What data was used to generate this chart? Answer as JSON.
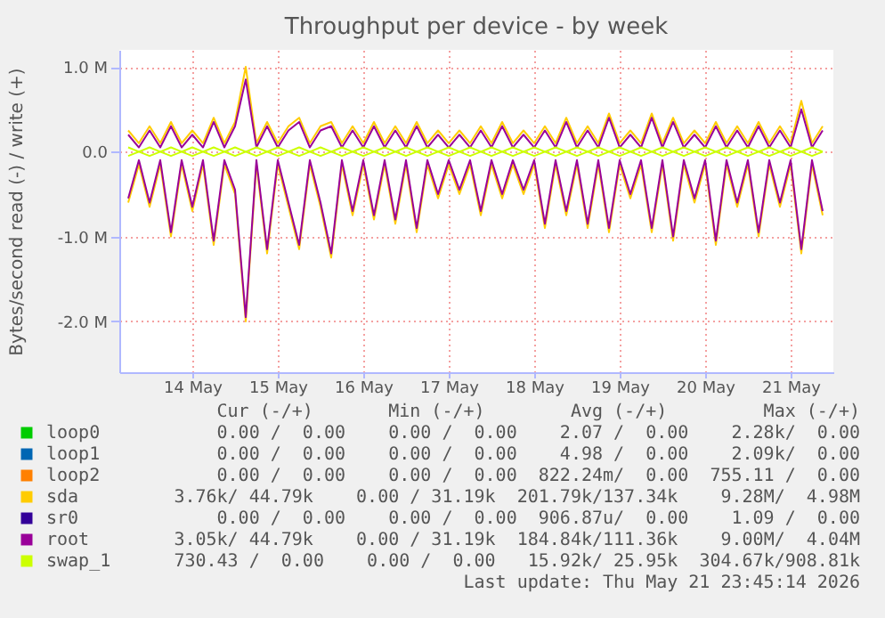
{
  "chart_data": {
    "type": "line",
    "title": "Throughput per device - by week",
    "ylabel": "Bytes/second read (-) / write (+)",
    "x": [
      "2026-05-13T18:00",
      "2026-05-13T21:00",
      "2026-05-14T00:00",
      "2026-05-14T03:00",
      "2026-05-14T06:00",
      "2026-05-14T09:00",
      "2026-05-14T12:00",
      "2026-05-14T15:00",
      "2026-05-14T18:00",
      "2026-05-14T21:00",
      "2026-05-15T00:00",
      "2026-05-15T03:00",
      "2026-05-15T06:00",
      "2026-05-15T09:00",
      "2026-05-15T12:00",
      "2026-05-15T15:00",
      "2026-05-15T18:00",
      "2026-05-15T21:00",
      "2026-05-16T00:00",
      "2026-05-16T03:00",
      "2026-05-16T06:00",
      "2026-05-16T09:00",
      "2026-05-16T12:00",
      "2026-05-16T15:00",
      "2026-05-16T18:00",
      "2026-05-16T21:00",
      "2026-05-17T00:00",
      "2026-05-17T03:00",
      "2026-05-17T06:00",
      "2026-05-17T09:00",
      "2026-05-17T12:00",
      "2026-05-17T15:00",
      "2026-05-17T18:00",
      "2026-05-17T21:00",
      "2026-05-18T00:00",
      "2026-05-18T03:00",
      "2026-05-18T06:00",
      "2026-05-18T09:00",
      "2026-05-18T12:00",
      "2026-05-18T15:00",
      "2026-05-18T18:00",
      "2026-05-18T21:00",
      "2026-05-19T00:00",
      "2026-05-19T03:00",
      "2026-05-19T06:00",
      "2026-05-19T09:00",
      "2026-05-19T12:00",
      "2026-05-19T15:00",
      "2026-05-19T18:00",
      "2026-05-19T21:00",
      "2026-05-20T00:00",
      "2026-05-20T03:00",
      "2026-05-20T06:00",
      "2026-05-20T09:00",
      "2026-05-20T12:00",
      "2026-05-20T15:00",
      "2026-05-20T18:00",
      "2026-05-20T21:00",
      "2026-05-21T00:00",
      "2026-05-21T03:00",
      "2026-05-21T06:00",
      "2026-05-21T09:00",
      "2026-05-21T12:00",
      "2026-05-21T15:00",
      "2026-05-21T18:00",
      "2026-05-21T21:00"
    ],
    "xlim": [
      "2026-05-13T15:30",
      "2026-05-22T00:00"
    ],
    "xticks": [
      {
        "value": "2026-05-14T12:00",
        "label": "14 May"
      },
      {
        "value": "2026-05-15T12:00",
        "label": "15 May"
      },
      {
        "value": "2026-05-16T12:00",
        "label": "16 May"
      },
      {
        "value": "2026-05-17T12:00",
        "label": "17 May"
      },
      {
        "value": "2026-05-18T12:00",
        "label": "18 May"
      },
      {
        "value": "2026-05-19T12:00",
        "label": "19 May"
      },
      {
        "value": "2026-05-20T12:00",
        "label": "20 May"
      },
      {
        "value": "2026-05-21T12:00",
        "label": "21 May"
      }
    ],
    "ylim": [
      -2600000,
      1200000
    ],
    "yticks": [
      {
        "value": -2000000,
        "label": "-2.0 M"
      },
      {
        "value": -1000000,
        "label": "-1.0 M"
      },
      {
        "value": 0,
        "label": "0.0"
      },
      {
        "value": 1000000,
        "label": "1.0 M"
      }
    ],
    "grid": true,
    "legend": "bottom left",
    "series": [
      {
        "name": "loop0",
        "color": "#00cc00",
        "values": [
          null,
          null,
          null,
          null,
          null,
          null,
          null,
          null,
          null,
          null,
          null,
          null,
          null,
          null,
          null,
          null,
          null,
          null,
          null,
          null,
          null,
          null,
          null,
          null,
          null,
          null,
          null,
          null,
          null,
          null,
          null,
          null,
          null,
          null,
          null,
          null,
          null,
          null,
          null,
          null,
          null,
          null,
          null,
          null,
          null,
          null,
          null,
          null,
          null,
          null,
          null,
          null,
          null,
          null,
          null,
          null,
          null,
          null,
          null,
          null,
          null,
          null,
          null,
          null,
          null,
          null
        ]
      },
      {
        "name": "loop1",
        "color": "#0066b3",
        "values": [
          null,
          null,
          null,
          null,
          null,
          null,
          null,
          null,
          null,
          null,
          null,
          null,
          null,
          null,
          null,
          null,
          null,
          null,
          null,
          null,
          null,
          null,
          null,
          null,
          null,
          null,
          null,
          null,
          null,
          null,
          null,
          null,
          null,
          null,
          null,
          null,
          null,
          null,
          null,
          null,
          null,
          null,
          null,
          null,
          null,
          null,
          null,
          null,
          null,
          null,
          null,
          null,
          null,
          null,
          null,
          null,
          null,
          null,
          null,
          null,
          null,
          null,
          null,
          null,
          null,
          null
        ]
      },
      {
        "name": "loop2",
        "color": "#ff8000",
        "values": [
          null,
          null,
          null,
          null,
          null,
          null,
          null,
          null,
          null,
          null,
          null,
          null,
          null,
          null,
          null,
          null,
          null,
          null,
          null,
          null,
          null,
          null,
          null,
          null,
          null,
          null,
          null,
          null,
          null,
          null,
          null,
          null,
          null,
          null,
          null,
          null,
          null,
          null,
          null,
          null,
          null,
          null,
          null,
          null,
          null,
          null,
          null,
          null,
          null,
          null,
          null,
          null,
          null,
          null,
          null,
          null,
          null,
          null,
          null,
          null,
          null,
          null,
          null,
          null,
          null,
          null
        ]
      },
      {
        "name": "sda",
        "color": "#ffcc00",
        "values": [
          250000,
          100000,
          300000,
          100000,
          350000,
          100000,
          250000,
          100000,
          400000,
          100000,
          350000,
          1000000,
          100000,
          350000,
          100000,
          300000,
          400000,
          100000,
          300000,
          350000,
          100000,
          300000,
          100000,
          350000,
          100000,
          300000,
          100000,
          350000,
          100000,
          250000,
          100000,
          250000,
          100000,
          300000,
          100000,
          350000,
          100000,
          250000,
          100000,
          300000,
          100000,
          400000,
          100000,
          300000,
          100000,
          450000,
          100000,
          250000,
          100000,
          450000,
          100000,
          400000,
          100000,
          250000,
          100000,
          350000,
          100000,
          300000,
          100000,
          350000,
          100000,
          300000,
          100000,
          600000,
          100000,
          300000
        ]
      },
      {
        "color": "#ffcc00",
        "values": [
          -600000,
          -150000,
          -650000,
          -150000,
          -1000000,
          -150000,
          -700000,
          -150000,
          -1100000,
          -150000,
          -500000,
          -2000000,
          -150000,
          -1200000,
          -150000,
          -650000,
          -1150000,
          -150000,
          -650000,
          -1250000,
          -150000,
          -750000,
          -150000,
          -800000,
          -150000,
          -850000,
          -150000,
          -950000,
          -150000,
          -550000,
          -150000,
          -500000,
          -150000,
          -750000,
          -150000,
          -550000,
          -150000,
          -500000,
          -150000,
          -900000,
          -150000,
          -750000,
          -150000,
          -900000,
          -150000,
          -950000,
          -150000,
          -550000,
          -150000,
          -950000,
          -150000,
          -1050000,
          -150000,
          -600000,
          -150000,
          -1100000,
          -150000,
          -650000,
          -150000,
          -1000000,
          -150000,
          -650000,
          -150000,
          -1200000,
          -150000,
          -750000
        ]
      },
      {
        "name": "sr0",
        "color": "#330099",
        "values": [
          null,
          null,
          null,
          null,
          null,
          null,
          null,
          null,
          null,
          null,
          null,
          null,
          null,
          null,
          null,
          null,
          null,
          null,
          null,
          null,
          null,
          null,
          null,
          null,
          null,
          null,
          null,
          null,
          null,
          null,
          null,
          null,
          null,
          null,
          null,
          null,
          null,
          null,
          null,
          null,
          null,
          null,
          null,
          null,
          null,
          null,
          null,
          null,
          null,
          null,
          null,
          null,
          null,
          null,
          null,
          null,
          null,
          null,
          null,
          null,
          null,
          null,
          null,
          null,
          null,
          null
        ]
      },
      {
        "name": "root",
        "color": "#990099",
        "values": [
          200000,
          50000,
          250000,
          50000,
          300000,
          50000,
          200000,
          50000,
          350000,
          50000,
          300000,
          850000,
          50000,
          300000,
          50000,
          250000,
          350000,
          50000,
          250000,
          300000,
          50000,
          250000,
          50000,
          300000,
          50000,
          250000,
          50000,
          300000,
          50000,
          200000,
          50000,
          200000,
          50000,
          250000,
          50000,
          300000,
          50000,
          200000,
          50000,
          250000,
          50000,
          350000,
          50000,
          250000,
          50000,
          400000,
          50000,
          200000,
          50000,
          400000,
          50000,
          350000,
          50000,
          200000,
          50000,
          300000,
          50000,
          250000,
          50000,
          300000,
          50000,
          250000,
          50000,
          500000,
          50000,
          250000
        ]
      },
      {
        "color": "#990099",
        "values": [
          -550000,
          -100000,
          -600000,
          -100000,
          -950000,
          -100000,
          -650000,
          -100000,
          -1050000,
          -100000,
          -450000,
          -1950000,
          -100000,
          -1150000,
          -100000,
          -600000,
          -1100000,
          -100000,
          -600000,
          -1200000,
          -100000,
          -700000,
          -100000,
          -750000,
          -100000,
          -800000,
          -100000,
          -900000,
          -100000,
          -500000,
          -100000,
          -450000,
          -100000,
          -700000,
          -100000,
          -500000,
          -100000,
          -450000,
          -100000,
          -850000,
          -100000,
          -700000,
          -100000,
          -850000,
          -100000,
          -900000,
          -100000,
          -500000,
          -100000,
          -900000,
          -100000,
          -1000000,
          -100000,
          -550000,
          -100000,
          -1050000,
          -100000,
          -600000,
          -100000,
          -950000,
          -100000,
          -600000,
          -100000,
          -1150000,
          -100000,
          -700000
        ]
      },
      {
        "name": "swap_1",
        "color": "#ccff00",
        "values": [
          50000,
          0,
          50000,
          0,
          50000,
          0,
          50000,
          0,
          50000,
          0,
          50000,
          0,
          50000,
          0,
          50000,
          0,
          50000,
          0,
          50000,
          0,
          50000,
          0,
          50000,
          0,
          50000,
          0,
          50000,
          0,
          50000,
          0,
          50000,
          0,
          50000,
          0,
          50000,
          0,
          50000,
          0,
          50000,
          0,
          50000,
          0,
          50000,
          0,
          50000,
          0,
          50000,
          0,
          50000,
          0,
          50000,
          0,
          50000,
          0,
          50000,
          0,
          50000,
          0,
          50000,
          0,
          50000,
          0,
          50000,
          0,
          50000,
          0
        ]
      },
      {
        "color": "#ccff00",
        "values": [
          -50000,
          0,
          -50000,
          0,
          -50000,
          0,
          -50000,
          0,
          -50000,
          0,
          -50000,
          0,
          -50000,
          0,
          -50000,
          0,
          -50000,
          0,
          -50000,
          0,
          -50000,
          0,
          -50000,
          0,
          -50000,
          0,
          -50000,
          0,
          -50000,
          0,
          -50000,
          0,
          -50000,
          0,
          -50000,
          0,
          -50000,
          0,
          -50000,
          0,
          -50000,
          0,
          -50000,
          0,
          -50000,
          0,
          -50000,
          0,
          -50000,
          0,
          -50000,
          0,
          -50000,
          0,
          -50000,
          0,
          -50000,
          0,
          -50000,
          0,
          -50000,
          0,
          -50000,
          0,
          -50000,
          0
        ]
      }
    ],
    "annotations": [
      "   Cur (-/+)       Min (-/+)        Avg (-/+)         Max (-/+) ",
      "  0.00 /  0.00    0.00 /  0.00    2.07 /  0.00    2.28k/  0.00 ",
      "  0.00 /  0.00    0.00 /  0.00    4.98 /  0.00    2.09k/  0.00 ",
      "  0.00 /  0.00    0.00 /  0.00  822.24m/  0.00  755.11 /  0.00 ",
      "  3.76k/ 44.79k    0.00 / 31.19k  201.79k/137.34k    9.28M/  4.98M",
      "  0.00 /  0.00    0.00 /  0.00  906.87u/  0.00    1.09 /  0.00 ",
      "  3.05k/ 44.79k    0.00 / 31.19k  184.84k/111.36k    9.00M/  4.04M",
      "730.43 /  0.00    0.00 /  0.00   15.92k/ 25.95k  304.67k/908.81k",
      "Last update: Thu May 21 23:45:14 2026"
    ]
  }
}
